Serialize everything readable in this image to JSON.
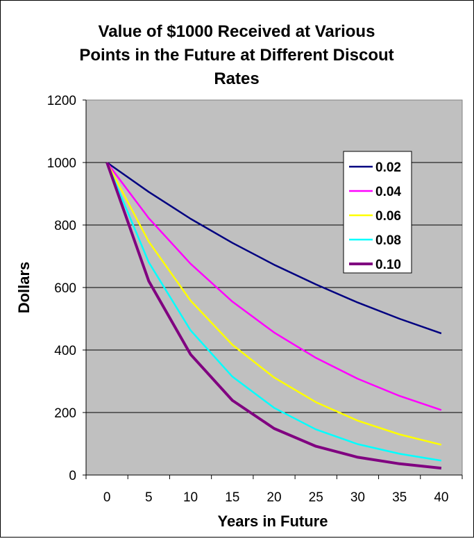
{
  "chart_data": {
    "type": "line",
    "title_lines": [
      "Value of $1000 Received at Various",
      "Points in the Future at Different Discout",
      "Rates"
    ],
    "xlabel": "Years in Future",
    "ylabel": "Dollars",
    "x": [
      0,
      5,
      10,
      15,
      20,
      25,
      30,
      35,
      40
    ],
    "ylim": [
      0,
      1200
    ],
    "yticks": [
      0,
      200,
      400,
      600,
      800,
      1000,
      1200
    ],
    "grid": true,
    "plot_background": "#c0c0c0",
    "legend_position": "right inside plot",
    "series": [
      {
        "name": "0.02",
        "color": "#000080",
        "values": [
          1000,
          906,
          820,
          743,
          673,
          610,
          552,
          500,
          453
        ]
      },
      {
        "name": "0.04",
        "color": "#ff00ff",
        "values": [
          1000,
          822,
          676,
          555,
          456,
          375,
          308,
          253,
          208
        ]
      },
      {
        "name": "0.06",
        "color": "#ffff00",
        "values": [
          1000,
          747,
          558,
          417,
          312,
          233,
          174,
          130,
          97
        ]
      },
      {
        "name": "0.08",
        "color": "#00ffff",
        "values": [
          1000,
          681,
          463,
          315,
          215,
          146,
          99,
          68,
          46
        ]
      },
      {
        "name": "0.10",
        "color": "#800080",
        "values": [
          1000,
          621,
          386,
          239,
          149,
          92,
          57,
          36,
          22
        ]
      }
    ]
  }
}
